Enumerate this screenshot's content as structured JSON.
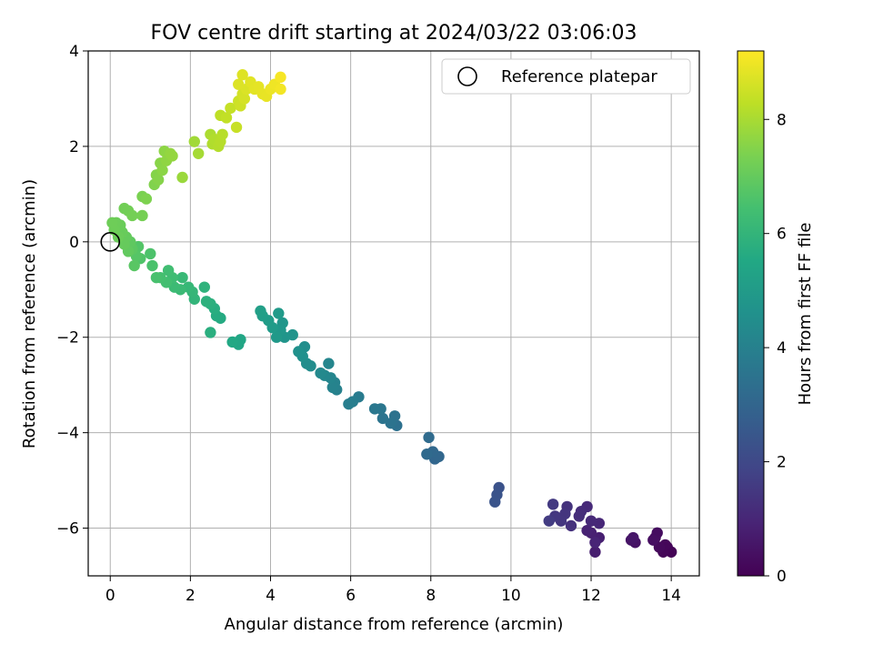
{
  "chart_data": {
    "type": "scatter",
    "title": "FOV centre drift starting at 2024/03/22 03:06:03",
    "xlabel": "Angular distance from reference (arcmin)",
    "ylabel": "Rotation from reference (arcmin)",
    "xlim": [
      -0.55,
      14.7
    ],
    "ylim": [
      -7.0,
      4.0
    ],
    "xticks": [
      0,
      2,
      4,
      6,
      8,
      10,
      12,
      14
    ],
    "yticks": [
      -6,
      -4,
      -2,
      0,
      2,
      4
    ],
    "grid": true,
    "legend": {
      "placement": "upper-right",
      "entries": [
        {
          "label": "Reference platepar",
          "marker": "open-circle"
        }
      ]
    },
    "reference_point": {
      "x": 0,
      "y": 0
    },
    "colorbar": {
      "label": "Hours from first FF file",
      "colormap": "viridis",
      "range": [
        0,
        9.2
      ],
      "ticks": [
        0,
        2,
        4,
        6,
        8
      ]
    },
    "points": [
      [
        14.0,
        -6.5,
        0.05
      ],
      [
        13.9,
        -6.4,
        0.1
      ],
      [
        13.8,
        -6.5,
        0.12
      ],
      [
        13.85,
        -6.35,
        0.15
      ],
      [
        13.7,
        -6.4,
        0.2
      ],
      [
        13.6,
        -6.2,
        0.25
      ],
      [
        13.65,
        -6.1,
        0.3
      ],
      [
        13.55,
        -6.25,
        0.35
      ],
      [
        13.1,
        -6.3,
        0.45
      ],
      [
        13.0,
        -6.25,
        0.5
      ],
      [
        13.05,
        -6.2,
        0.55
      ],
      [
        12.1,
        -6.5,
        0.75
      ],
      [
        12.2,
        -6.2,
        0.8
      ],
      [
        12.0,
        -6.1,
        0.85
      ],
      [
        11.9,
        -6.05,
        0.9
      ],
      [
        12.1,
        -6.3,
        0.95
      ],
      [
        12.2,
        -5.9,
        1.0
      ],
      [
        12.0,
        -5.85,
        1.05
      ],
      [
        11.9,
        -5.55,
        1.1
      ],
      [
        11.75,
        -5.65,
        1.15
      ],
      [
        11.7,
        -5.75,
        1.2
      ],
      [
        11.5,
        -5.95,
        1.3
      ],
      [
        11.4,
        -5.55,
        1.35
      ],
      [
        11.35,
        -5.7,
        1.4
      ],
      [
        11.25,
        -5.85,
        1.45
      ],
      [
        11.1,
        -5.75,
        1.5
      ],
      [
        11.05,
        -5.5,
        1.55
      ],
      [
        10.95,
        -5.85,
        1.6
      ],
      [
        9.7,
        -5.15,
        2.3
      ],
      [
        9.65,
        -5.3,
        2.35
      ],
      [
        9.6,
        -5.45,
        2.4
      ],
      [
        8.1,
        -4.55,
        3.0
      ],
      [
        8.2,
        -4.5,
        3.05
      ],
      [
        8.05,
        -4.4,
        3.1
      ],
      [
        7.9,
        -4.45,
        3.15
      ],
      [
        7.95,
        -4.1,
        3.2
      ],
      [
        7.15,
        -3.85,
        3.4
      ],
      [
        7.1,
        -3.65,
        3.45
      ],
      [
        7.0,
        -3.8,
        3.5
      ],
      [
        6.8,
        -3.7,
        3.55
      ],
      [
        6.75,
        -3.5,
        3.6
      ],
      [
        6.6,
        -3.5,
        3.65
      ],
      [
        6.2,
        -3.25,
        3.8
      ],
      [
        6.05,
        -3.35,
        3.85
      ],
      [
        5.95,
        -3.4,
        3.9
      ],
      [
        5.65,
        -3.1,
        4.0
      ],
      [
        5.6,
        -2.95,
        4.05
      ],
      [
        5.55,
        -3.05,
        4.1
      ],
      [
        5.5,
        -2.85,
        4.15
      ],
      [
        5.45,
        -2.55,
        4.2
      ],
      [
        5.35,
        -2.8,
        4.25
      ],
      [
        5.25,
        -2.75,
        4.3
      ],
      [
        5.0,
        -2.6,
        4.4
      ],
      [
        4.9,
        -2.55,
        4.45
      ],
      [
        4.85,
        -2.2,
        4.5
      ],
      [
        4.8,
        -2.4,
        4.55
      ],
      [
        4.7,
        -2.3,
        4.6
      ],
      [
        4.55,
        -1.95,
        4.7
      ],
      [
        4.35,
        -2.0,
        4.75
      ],
      [
        4.3,
        -1.7,
        4.8
      ],
      [
        4.25,
        -1.85,
        4.85
      ],
      [
        4.15,
        -2.0,
        4.9
      ],
      [
        4.2,
        -1.5,
        4.95
      ],
      [
        4.05,
        -1.8,
        5.0
      ],
      [
        3.95,
        -1.65,
        5.05
      ],
      [
        3.8,
        -1.55,
        5.1
      ],
      [
        3.75,
        -1.45,
        5.15
      ],
      [
        3.2,
        -2.15,
        5.4
      ],
      [
        3.25,
        -2.05,
        5.45
      ],
      [
        3.05,
        -2.1,
        5.5
      ],
      [
        2.75,
        -1.6,
        5.6
      ],
      [
        2.65,
        -1.55,
        5.65
      ],
      [
        2.6,
        -1.4,
        5.7
      ],
      [
        2.5,
        -1.9,
        5.75
      ],
      [
        2.5,
        -1.3,
        5.8
      ],
      [
        2.4,
        -1.25,
        5.85
      ],
      [
        2.35,
        -0.95,
        5.9
      ],
      [
        2.1,
        -1.2,
        6.0
      ],
      [
        2.05,
        -1.05,
        6.05
      ],
      [
        1.95,
        -0.95,
        6.1
      ],
      [
        1.8,
        -0.75,
        6.15
      ],
      [
        1.75,
        -1.0,
        6.2
      ],
      [
        1.6,
        -0.95,
        6.25
      ],
      [
        1.55,
        -0.75,
        6.3
      ],
      [
        1.45,
        -0.6,
        6.35
      ],
      [
        1.4,
        -0.85,
        6.4
      ],
      [
        1.25,
        -0.75,
        6.45
      ],
      [
        1.15,
        -0.75,
        6.5
      ],
      [
        1.05,
        -0.5,
        6.55
      ],
      [
        1.0,
        -0.25,
        6.6
      ],
      [
        0.75,
        -0.35,
        6.65
      ],
      [
        0.7,
        -0.1,
        6.7
      ],
      [
        0.65,
        -0.3,
        6.75
      ],
      [
        0.6,
        -0.5,
        6.8
      ],
      [
        0.55,
        -0.15,
        6.85
      ],
      [
        0.5,
        0.0,
        6.9
      ],
      [
        0.45,
        -0.2,
        6.95
      ],
      [
        0.4,
        0.1,
        7.0
      ],
      [
        0.35,
        -0.05,
        7.02
      ],
      [
        0.3,
        0.2,
        7.05
      ],
      [
        0.25,
        0.35,
        7.08
      ],
      [
        0.2,
        0.1,
        7.1
      ],
      [
        0.15,
        0.4,
        7.12
      ],
      [
        0.1,
        0.25,
        7.14
      ],
      [
        0.05,
        0.4,
        7.16
      ],
      [
        0.35,
        0.7,
        7.2
      ],
      [
        0.45,
        0.65,
        7.22
      ],
      [
        0.55,
        0.55,
        7.25
      ],
      [
        0.8,
        0.55,
        7.28
      ],
      [
        0.8,
        0.95,
        7.35
      ],
      [
        0.9,
        0.9,
        7.4
      ],
      [
        1.1,
        1.2,
        7.45
      ],
      [
        1.15,
        1.4,
        7.5
      ],
      [
        1.2,
        1.3,
        7.52
      ],
      [
        1.25,
        1.65,
        7.55
      ],
      [
        1.3,
        1.5,
        7.6
      ],
      [
        1.35,
        1.9,
        7.62
      ],
      [
        1.4,
        1.7,
        7.65
      ],
      [
        1.5,
        1.85,
        7.7
      ],
      [
        1.55,
        1.8,
        7.72
      ],
      [
        1.8,
        1.35,
        7.8
      ],
      [
        2.1,
        2.1,
        7.9
      ],
      [
        2.2,
        1.85,
        7.95
      ],
      [
        2.5,
        2.25,
        8.05
      ],
      [
        2.55,
        2.05,
        8.1
      ],
      [
        2.6,
        2.15,
        8.12
      ],
      [
        2.7,
        2.0,
        8.15
      ],
      [
        2.75,
        2.1,
        8.18
      ],
      [
        2.8,
        2.25,
        8.2
      ],
      [
        2.75,
        2.65,
        8.3
      ],
      [
        2.9,
        2.6,
        8.35
      ],
      [
        3.0,
        2.8,
        8.4
      ],
      [
        3.15,
        2.4,
        8.42
      ],
      [
        3.2,
        2.95,
        8.5
      ],
      [
        3.25,
        2.85,
        8.52
      ],
      [
        3.3,
        3.1,
        8.6
      ],
      [
        3.35,
        3.0,
        8.62
      ],
      [
        3.4,
        3.2,
        8.7
      ],
      [
        3.2,
        3.3,
        8.72
      ],
      [
        3.3,
        3.5,
        8.75
      ],
      [
        3.5,
        3.35,
        8.8
      ],
      [
        3.6,
        3.2,
        8.82
      ],
      [
        3.7,
        3.25,
        8.85
      ],
      [
        3.8,
        3.1,
        8.88
      ],
      [
        3.9,
        3.05,
        8.9
      ],
      [
        4.0,
        3.2,
        8.95
      ],
      [
        4.1,
        3.3,
        9.0
      ],
      [
        4.25,
        3.2,
        9.05
      ],
      [
        4.25,
        3.45,
        9.1
      ]
    ]
  }
}
